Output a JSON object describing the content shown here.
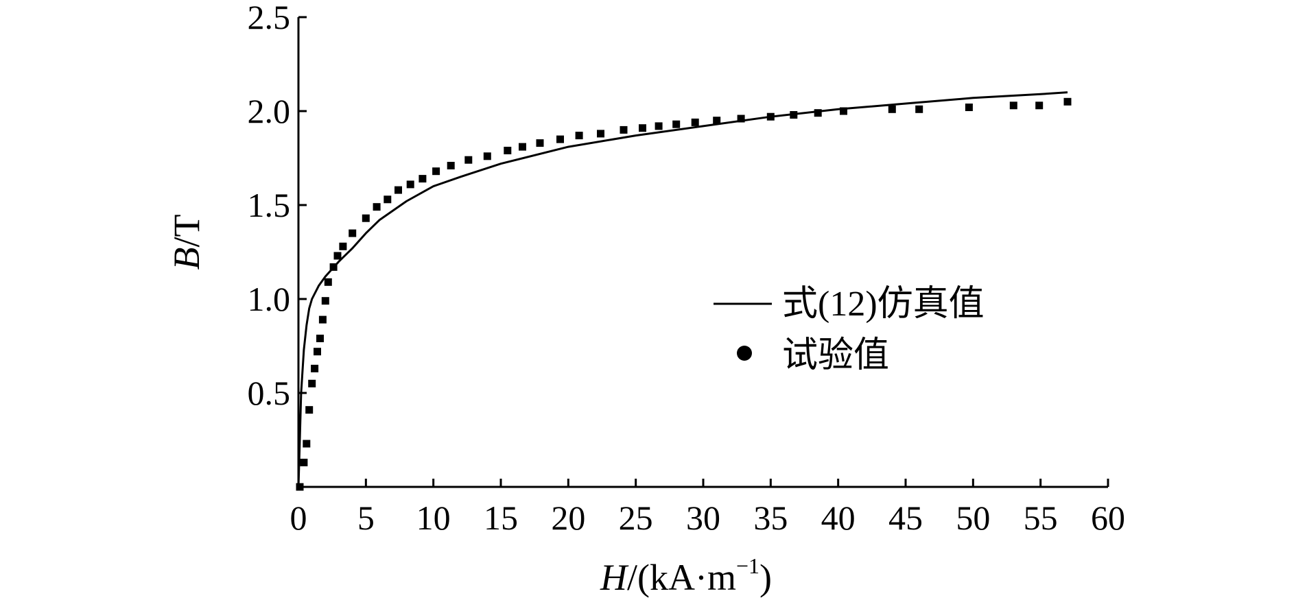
{
  "chart_data": {
    "type": "line",
    "xlabel": {
      "italic": "H",
      "rest": "/(kA·m",
      "sup": "−1",
      "close": ")"
    },
    "ylabel": {
      "italic": "B",
      "rest": "/T"
    },
    "xlim": [
      0,
      60
    ],
    "ylim": [
      0,
      2.5
    ],
    "xticks": [
      0,
      5,
      10,
      15,
      20,
      25,
      30,
      35,
      40,
      45,
      50,
      55,
      60
    ],
    "xtick_labels": [
      "0",
      "5",
      "10",
      "15",
      "20",
      "25",
      "30",
      "35",
      "40",
      "45",
      "50",
      "55",
      "60"
    ],
    "yticks": [
      0.5,
      1.0,
      1.5,
      2.0,
      2.5
    ],
    "ytick_labels": [
      "0.5",
      "1.0",
      "1.5",
      "2.0",
      "2.5"
    ],
    "grid": false,
    "legend_position": "right-center",
    "series": [
      {
        "name": "式(12)仿真值",
        "style": "line",
        "color": "#000000",
        "points": [
          [
            0,
            0
          ],
          [
            0.1,
            0.25
          ],
          [
            0.2,
            0.5
          ],
          [
            0.4,
            0.73
          ],
          [
            0.6,
            0.86
          ],
          [
            0.8,
            0.95
          ],
          [
            1.0,
            1.0
          ],
          [
            1.5,
            1.07
          ],
          [
            2.0,
            1.12
          ],
          [
            3.0,
            1.2
          ],
          [
            4.0,
            1.27
          ],
          [
            5.0,
            1.35
          ],
          [
            6.0,
            1.42
          ],
          [
            8.0,
            1.52
          ],
          [
            10.0,
            1.6
          ],
          [
            12.0,
            1.65
          ],
          [
            15.0,
            1.72
          ],
          [
            20.0,
            1.81
          ],
          [
            25.0,
            1.87
          ],
          [
            30.0,
            1.92
          ],
          [
            35.0,
            1.97
          ],
          [
            40.0,
            2.01
          ],
          [
            45.0,
            2.04
          ],
          [
            50.0,
            2.07
          ],
          [
            55.0,
            2.09
          ],
          [
            57.0,
            2.1
          ]
        ]
      },
      {
        "name": "试验值",
        "style": "marker",
        "color": "#000000",
        "points": [
          [
            0.1,
            0.0
          ],
          [
            0.4,
            0.13
          ],
          [
            0.6,
            0.23
          ],
          [
            0.8,
            0.41
          ],
          [
            1.0,
            0.55
          ],
          [
            1.2,
            0.63
          ],
          [
            1.4,
            0.72
          ],
          [
            1.6,
            0.79
          ],
          [
            1.8,
            0.89
          ],
          [
            2.0,
            0.99
          ],
          [
            2.2,
            1.09
          ],
          [
            2.6,
            1.17
          ],
          [
            2.9,
            1.23
          ],
          [
            3.3,
            1.28
          ],
          [
            4.0,
            1.35
          ],
          [
            5.0,
            1.43
          ],
          [
            5.8,
            1.49
          ],
          [
            6.6,
            1.53
          ],
          [
            7.4,
            1.58
          ],
          [
            8.3,
            1.61
          ],
          [
            9.2,
            1.64
          ],
          [
            10.2,
            1.68
          ],
          [
            11.3,
            1.71
          ],
          [
            12.6,
            1.74
          ],
          [
            14.0,
            1.76
          ],
          [
            15.5,
            1.79
          ],
          [
            16.6,
            1.81
          ],
          [
            17.9,
            1.83
          ],
          [
            19.4,
            1.85
          ],
          [
            20.8,
            1.87
          ],
          [
            22.4,
            1.88
          ],
          [
            24.1,
            1.9
          ],
          [
            25.5,
            1.91
          ],
          [
            26.7,
            1.92
          ],
          [
            28.0,
            1.93
          ],
          [
            29.4,
            1.94
          ],
          [
            31.0,
            1.95
          ],
          [
            32.8,
            1.96
          ],
          [
            35.0,
            1.97
          ],
          [
            36.7,
            1.98
          ],
          [
            38.5,
            1.99
          ],
          [
            40.4,
            2.0
          ],
          [
            44.0,
            2.01
          ],
          [
            46.0,
            2.01
          ],
          [
            49.7,
            2.02
          ],
          [
            53.0,
            2.03
          ],
          [
            54.9,
            2.03
          ],
          [
            57.0,
            2.05
          ]
        ]
      }
    ]
  }
}
